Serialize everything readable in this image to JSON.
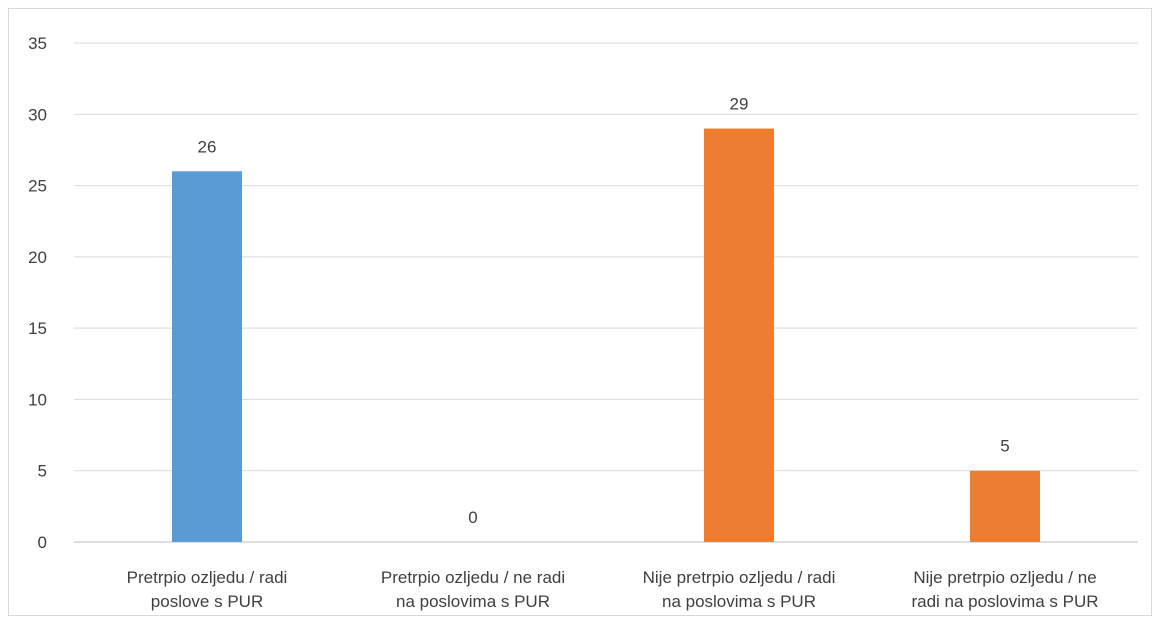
{
  "chart_data": {
    "type": "bar",
    "title": "",
    "xlabel": "",
    "ylabel": "",
    "ylim": [
      0,
      35
    ],
    "yticks": [
      0,
      5,
      10,
      15,
      20,
      25,
      30,
      35
    ],
    "grid": true,
    "legend": "none",
    "categories": [
      [
        "Pretrpio ozljedu / radi",
        "poslove s PUR"
      ],
      [
        "Pretrpio ozljedu / ne radi",
        "na poslovima s PUR"
      ],
      [
        "Nije pretrpio ozljedu / radi",
        "na poslovima s PUR"
      ],
      [
        "Nije pretrpio ozljedu / ne",
        "radi na poslovima s PUR"
      ]
    ],
    "values": [
      26,
      0,
      29,
      5
    ],
    "colors": [
      "#5b9bd5",
      "#5b9bd5",
      "#ed7d31",
      "#ed7d31"
    ]
  }
}
